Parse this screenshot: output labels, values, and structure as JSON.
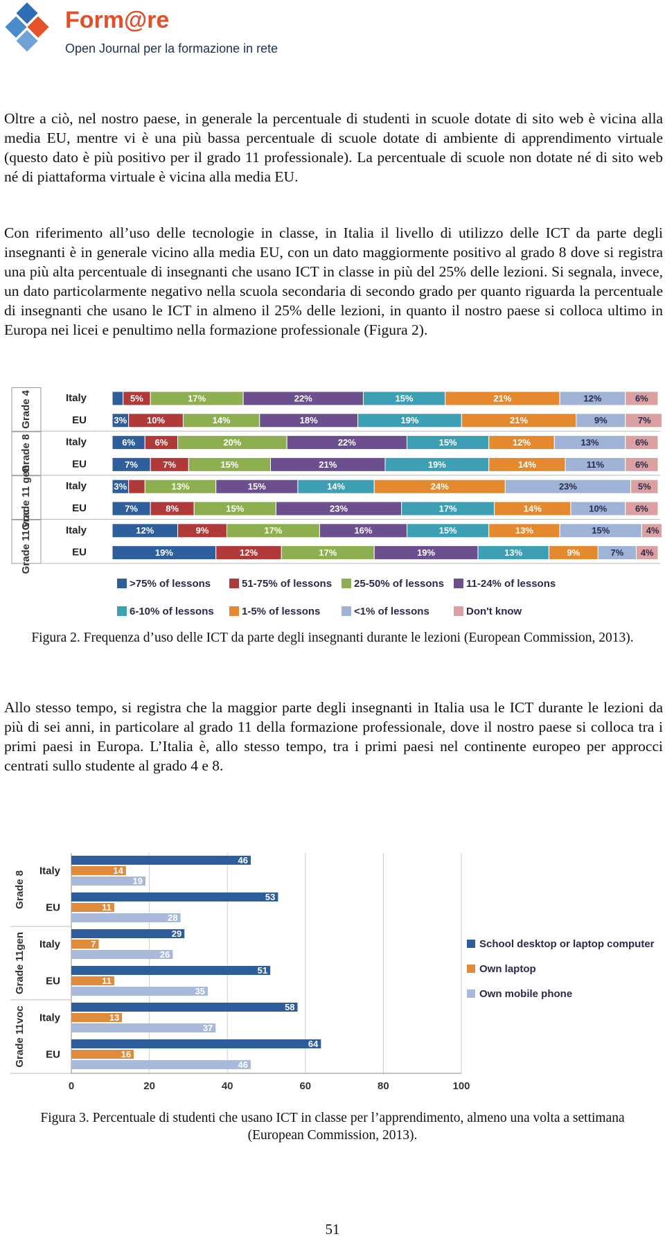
{
  "header": {
    "title": "Form@re",
    "subtitle": "Open Journal per la formazione in rete"
  },
  "paragraphs": [
    "Oltre a ciò, nel nostro paese, in generale la percentuale di studenti in scuole dotate di sito web è vicina alla media EU, mentre vi è una più bassa percentuale di scuole dotate di ambiente di apprendimento virtuale (questo dato è più positivo per il grado 11 professionale). La percentuale di scuole non dotate né di sito web né di piattaforma virtuale è vicina alla media EU.",
    "Con riferimento all’uso delle tecnologie in classe, in Italia il livello di utilizzo delle ICT da parte degli insegnanti è in generale vicino alla media EU, con un dato maggiormente positivo al grado 8 dove si registra una più alta percentuale di insegnanti che usano ICT in classe in più del 25% delle lezioni. Si segnala, invece, un dato particolarmente negativo nella scuola secondaria di secondo grado per quanto riguarda la percentuale di insegnanti che usano le ICT in almeno il 25% delle lezioni, in quanto il nostro paese si colloca ultimo in Europa nei licei e penultimo nella formazione professionale (Figura 2).",
    "Allo stesso tempo, si registra che la maggior parte degli insegnanti in Italia usa le ICT durante le lezioni da più di sei anni, in particolare al grado 11 della formazione professionale, dove il nostro paese si colloca tra i primi paesi in Europa. L’Italia è, allo stesso tempo, tra i primi paesi nel continente europeo per approcci centrati sullo studente al grado 4 e 8."
  ],
  "chart_data": [
    {
      "type": "bar",
      "stacked": true,
      "orientation": "horizontal",
      "groups": [
        "Grade 4",
        "Grade 8",
        "Grade 11 gen",
        "Grade 11 voc"
      ],
      "categories": [
        "Italy",
        "EU",
        "Italy",
        "EU",
        "Italy",
        "EU",
        "Italy",
        "EU"
      ],
      "xlim": [
        0,
        100
      ],
      "series": [
        {
          "name": ">75% of lessons",
          "color": "#2f5e9c",
          "values": [
            2,
            3,
            6,
            7,
            3,
            7,
            12,
            19
          ],
          "value_labels": [
            null,
            "3%",
            "6%",
            "7%",
            "3%",
            "7%",
            "12%",
            "19%"
          ]
        },
        {
          "name": "51-75% of lessons",
          "color": "#b0393a",
          "values": [
            5,
            10,
            6,
            7,
            3,
            8,
            9,
            12
          ],
          "value_labels": [
            "5%",
            "10%",
            "6%",
            "7%",
            null,
            "8%",
            "9%",
            "12%"
          ]
        },
        {
          "name": "25-50% of lessons",
          "color": "#8eaf4f",
          "values": [
            17,
            14,
            20,
            15,
            13,
            15,
            17,
            17
          ],
          "value_labels": [
            "17%",
            "14%",
            "20%",
            "15%",
            "13%",
            "15%",
            "17%",
            "17%"
          ]
        },
        {
          "name": "11-24% of lessons",
          "color": "#6b4f8e",
          "values": [
            22,
            18,
            22,
            21,
            15,
            23,
            16,
            19
          ],
          "value_labels": [
            "22%",
            "18%",
            "22%",
            "21%",
            "15%",
            "23%",
            "16%",
            "19%"
          ]
        },
        {
          "name": "6-10% of lessons",
          "color": "#3d9fb4",
          "values": [
            15,
            19,
            15,
            19,
            14,
            17,
            15,
            13
          ],
          "value_labels": [
            "15%",
            "19%",
            "15%",
            "19%",
            "14%",
            "17%",
            "15%",
            "13%"
          ]
        },
        {
          "name": "1-5% of lessons",
          "color": "#e5892f",
          "values": [
            21,
            21,
            12,
            14,
            24,
            14,
            13,
            9
          ],
          "value_labels": [
            "21%",
            "21%",
            "12%",
            "14%",
            "24%",
            "14%",
            "13%",
            "9%"
          ]
        },
        {
          "name": "<1% of lessons",
          "color": "#9fb3d7",
          "values": [
            12,
            9,
            13,
            11,
            23,
            10,
            15,
            7
          ],
          "value_labels": [
            "12%",
            "9%",
            "13%",
            "11%",
            "23%",
            "10%",
            "15%",
            "7%"
          ]
        },
        {
          "name": "Don't know",
          "color": "#daa0a2",
          "values": [
            6,
            7,
            6,
            6,
            5,
            6,
            4,
            4
          ],
          "value_labels": [
            "6%",
            "7%",
            "6%",
            "6%",
            "5%",
            "6%",
            "4%",
            "4%"
          ]
        }
      ]
    },
    {
      "type": "bar",
      "stacked": false,
      "orientation": "horizontal",
      "groups": [
        "Grade 8",
        "Grade 11gen",
        "Grade 11voc"
      ],
      "categories": [
        "Italy",
        "EU",
        "Italy",
        "EU",
        "Italy",
        "EU"
      ],
      "xlim": [
        0,
        100
      ],
      "xticks": [
        0,
        20,
        40,
        60,
        80,
        100
      ],
      "grid": true,
      "legend": "right",
      "series": [
        {
          "name": "School desktop or laptop computer",
          "color": "#2e5d9b",
          "values": [
            46,
            53,
            29,
            51,
            58,
            64
          ]
        },
        {
          "name": "Own laptop",
          "color": "#e08a3c",
          "values": [
            14,
            11,
            7,
            11,
            13,
            16
          ]
        },
        {
          "name": "Own mobile phone",
          "color": "#a8b9da",
          "values": [
            19,
            28,
            26,
            35,
            37,
            46
          ]
        }
      ]
    }
  ],
  "captions": [
    "Figura 2. Frequenza d’uso delle ICT da parte degli insegnanti durante le lezioni (European Commission, 2013).",
    "Figura 3. Percentuale di studenti che usano ICT in classe per l’apprendimento, almeno una volta a settimana (European Commission, 2013)."
  ],
  "page_number": 51
}
